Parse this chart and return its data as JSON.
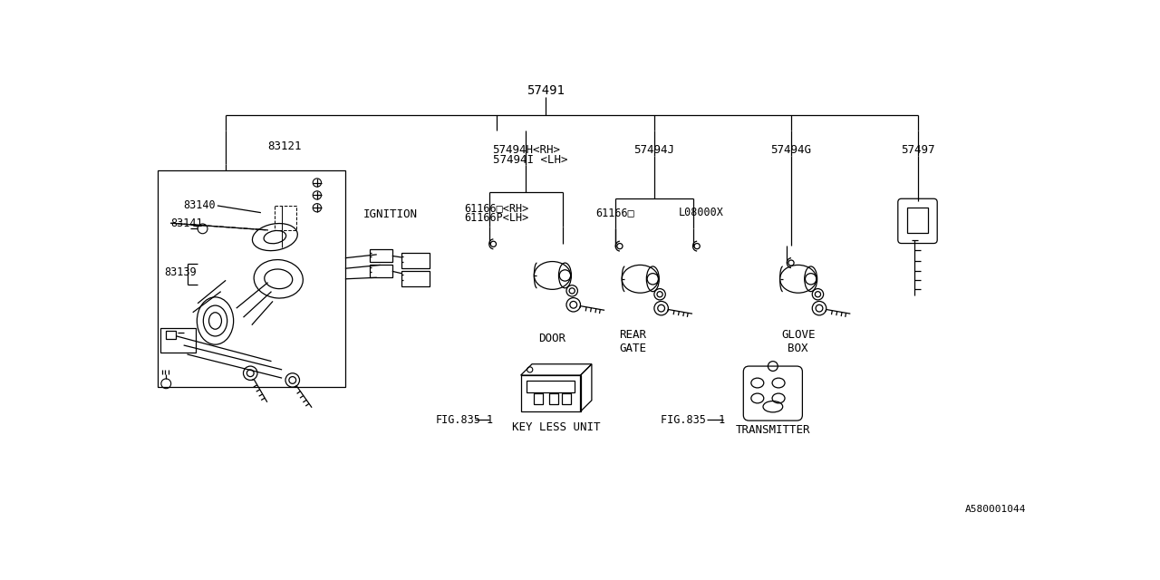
{
  "bg_color": "#ffffff",
  "lc": "#000000",
  "tc": "#000000",
  "title_code": "A580001044",
  "p_main": "57491",
  "p_door_h": "57494H<RH>",
  "p_door_i": "57494I <LH>",
  "p_door_rh": "61166□<RH>",
  "p_door_lh": "61166P<LH>",
  "p_rear": "57494J",
  "p_rear_sub1": "61166□",
  "p_rear_sub2": "L08000X",
  "p_glove": "57494G",
  "p_key": "57497",
  "p_83121": "83121",
  "p_83140": "83140",
  "p_83141": "83141",
  "p_83139": "83139",
  "lbl_ignition": "IGNITION",
  "lbl_door": "DOOR",
  "lbl_rear": "REAR\nGATE",
  "lbl_glove": "GLOVE\nBOX",
  "lbl_fig1": "FIG.835-1",
  "lbl_fig2": "FIG.835 -1",
  "lbl_keyless": "KEY LESS UNIT",
  "lbl_transmitter": "TRANSMITTER"
}
